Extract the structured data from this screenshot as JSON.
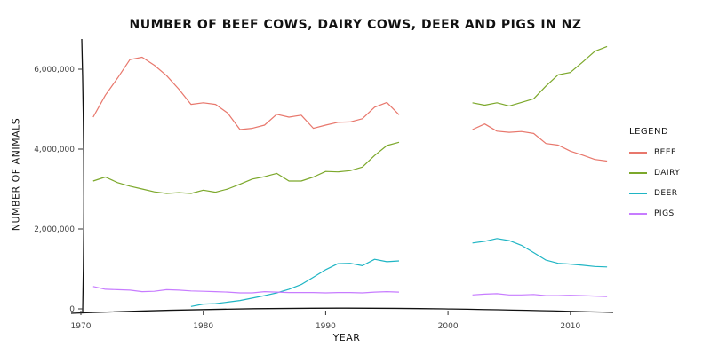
{
  "chart_data": {
    "type": "line",
    "title": "NUMBER OF BEEF COWS, DAIRY COWS, DEER AND PIGS IN NZ",
    "xlabel": "YEAR",
    "ylabel": "NUMBER OF ANIMALS",
    "xlim": [
      1970,
      2013.5
    ],
    "ylim": [
      0,
      6800000
    ],
    "x_ticks": [
      1970,
      1980,
      1990,
      2000,
      2010
    ],
    "x_tick_labels": [
      "1970",
      "1980",
      "1990",
      "2000",
      "2010"
    ],
    "y_ticks": [
      0,
      2000000,
      4000000,
      6000000
    ],
    "y_tick_labels": [
      "0",
      "2,000,000",
      "4,000,000",
      "6,000,000"
    ],
    "grid": false,
    "legend": {
      "title": "LEGEND",
      "position": "right"
    },
    "series": [
      {
        "name": "BEEF",
        "color": "#e8776c",
        "segments": [
          [
            [
              1971,
              4800000
            ],
            [
              1972,
              5350000
            ],
            [
              1973,
              5780000
            ],
            [
              1974,
              6240000
            ],
            [
              1975,
              6300000
            ],
            [
              1976,
              6100000
            ],
            [
              1977,
              5840000
            ],
            [
              1978,
              5500000
            ],
            [
              1979,
              5120000
            ],
            [
              1980,
              5160000
            ],
            [
              1981,
              5120000
            ],
            [
              1982,
              4900000
            ],
            [
              1983,
              4490000
            ],
            [
              1984,
              4520000
            ],
            [
              1985,
              4600000
            ],
            [
              1986,
              4870000
            ],
            [
              1987,
              4800000
            ],
            [
              1988,
              4850000
            ],
            [
              1989,
              4520000
            ],
            [
              1990,
              4600000
            ],
            [
              1991,
              4670000
            ],
            [
              1992,
              4680000
            ],
            [
              1993,
              4760000
            ],
            [
              1994,
              5050000
            ],
            [
              1995,
              5170000
            ],
            [
              1996,
              4860000
            ]
          ],
          [
            [
              2002,
              4490000
            ],
            [
              2003,
              4630000
            ],
            [
              2004,
              4450000
            ],
            [
              2005,
              4420000
            ],
            [
              2006,
              4440000
            ],
            [
              2007,
              4390000
            ],
            [
              2008,
              4140000
            ],
            [
              2009,
              4100000
            ],
            [
              2010,
              3950000
            ],
            [
              2011,
              3850000
            ],
            [
              2012,
              3740000
            ],
            [
              2013,
              3700000
            ]
          ]
        ]
      },
      {
        "name": "DAIRY",
        "color": "#7ca82b",
        "segments": [
          [
            [
              1971,
              3200000
            ],
            [
              1972,
              3300000
            ],
            [
              1973,
              3160000
            ],
            [
              1974,
              3070000
            ],
            [
              1975,
              3000000
            ],
            [
              1976,
              2930000
            ],
            [
              1977,
              2890000
            ],
            [
              1978,
              2910000
            ],
            [
              1979,
              2890000
            ],
            [
              1980,
              2970000
            ],
            [
              1981,
              2920000
            ],
            [
              1982,
              3000000
            ],
            [
              1983,
              3120000
            ],
            [
              1984,
              3250000
            ],
            [
              1985,
              3310000
            ],
            [
              1986,
              3390000
            ],
            [
              1987,
              3200000
            ],
            [
              1988,
              3200000
            ],
            [
              1989,
              3300000
            ],
            [
              1990,
              3440000
            ],
            [
              1991,
              3430000
            ],
            [
              1992,
              3460000
            ],
            [
              1993,
              3550000
            ],
            [
              1994,
              3840000
            ],
            [
              1995,
              4090000
            ],
            [
              1996,
              4170000
            ]
          ],
          [
            [
              2002,
              5160000
            ],
            [
              2003,
              5100000
            ],
            [
              2004,
              5160000
            ],
            [
              2005,
              5080000
            ],
            [
              2006,
              5170000
            ],
            [
              2007,
              5260000
            ],
            [
              2008,
              5580000
            ],
            [
              2009,
              5860000
            ],
            [
              2010,
              5920000
            ],
            [
              2011,
              6180000
            ],
            [
              2012,
              6450000
            ],
            [
              2013,
              6570000
            ]
          ]
        ]
      },
      {
        "name": "DEER",
        "color": "#1fb5c4",
        "segments": [
          [
            [
              1979,
              60000
            ],
            [
              1980,
              120000
            ],
            [
              1981,
              130000
            ],
            [
              1982,
              170000
            ],
            [
              1983,
              210000
            ],
            [
              1984,
              270000
            ],
            [
              1985,
              330000
            ],
            [
              1986,
              400000
            ],
            [
              1987,
              490000
            ],
            [
              1988,
              610000
            ],
            [
              1989,
              790000
            ],
            [
              1990,
              980000
            ],
            [
              1991,
              1130000
            ],
            [
              1992,
              1140000
            ],
            [
              1993,
              1080000
            ],
            [
              1994,
              1240000
            ],
            [
              1995,
              1180000
            ],
            [
              1996,
              1200000
            ]
          ],
          [
            [
              2002,
              1650000
            ],
            [
              2003,
              1690000
            ],
            [
              2004,
              1760000
            ],
            [
              2005,
              1710000
            ],
            [
              2006,
              1590000
            ],
            [
              2007,
              1410000
            ],
            [
              2008,
              1220000
            ],
            [
              2009,
              1140000
            ],
            [
              2010,
              1120000
            ],
            [
              2011,
              1090000
            ],
            [
              2012,
              1060000
            ],
            [
              2013,
              1050000
            ]
          ]
        ]
      },
      {
        "name": "PIGS",
        "color": "#c77cff",
        "segments": [
          [
            [
              1971,
              560000
            ],
            [
              1972,
              490000
            ],
            [
              1973,
              480000
            ],
            [
              1974,
              470000
            ],
            [
              1975,
              430000
            ],
            [
              1976,
              440000
            ],
            [
              1977,
              480000
            ],
            [
              1978,
              470000
            ],
            [
              1979,
              450000
            ],
            [
              1980,
              440000
            ],
            [
              1981,
              430000
            ],
            [
              1982,
              420000
            ],
            [
              1983,
              400000
            ],
            [
              1984,
              400000
            ],
            [
              1985,
              430000
            ],
            [
              1986,
              420000
            ],
            [
              1987,
              410000
            ],
            [
              1988,
              410000
            ],
            [
              1989,
              410000
            ],
            [
              1990,
              400000
            ],
            [
              1991,
              410000
            ],
            [
              1992,
              410000
            ],
            [
              1993,
              400000
            ],
            [
              1994,
              420000
            ],
            [
              1995,
              430000
            ],
            [
              1996,
              420000
            ]
          ],
          [
            [
              2002,
              350000
            ],
            [
              2003,
              370000
            ],
            [
              2004,
              380000
            ],
            [
              2005,
              350000
            ],
            [
              2006,
              350000
            ],
            [
              2007,
              360000
            ],
            [
              2008,
              330000
            ],
            [
              2009,
              330000
            ],
            [
              2010,
              340000
            ],
            [
              2011,
              330000
            ],
            [
              2012,
              320000
            ],
            [
              2013,
              310000
            ]
          ]
        ]
      }
    ]
  }
}
